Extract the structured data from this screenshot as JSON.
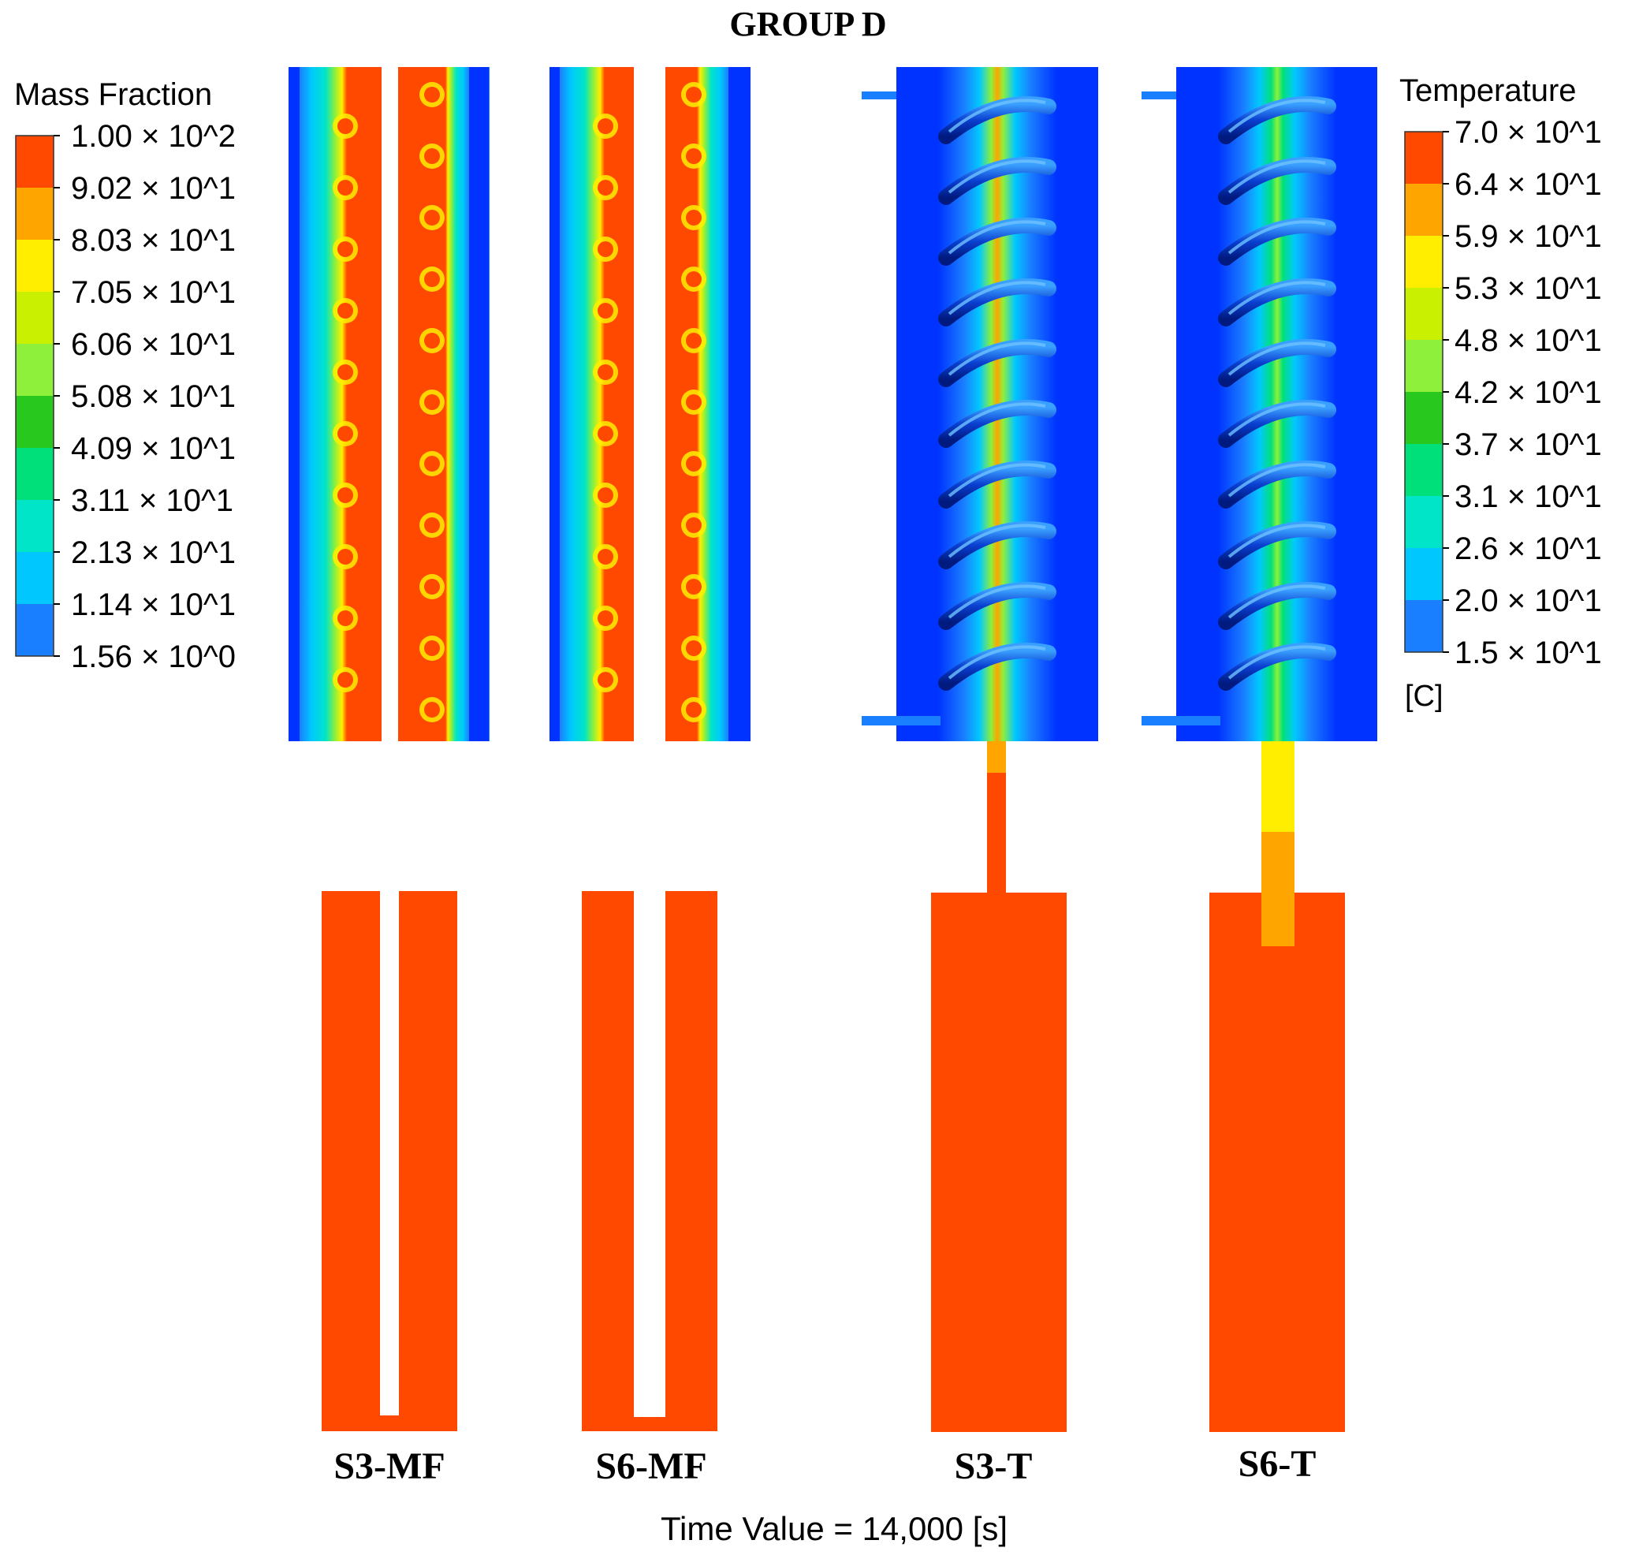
{
  "title": "GROUP D",
  "time_label": "Time Value = 14,000 [s]",
  "colors": {
    "c0": "#0033ff",
    "c1": "#1a7fff",
    "c2": "#00c8ff",
    "c3": "#00e5c8",
    "c4": "#00e07a",
    "c5": "#29c81e",
    "c6": "#8ef03a",
    "c7": "#c8f000",
    "c8": "#ffee00",
    "c9": "#ffa500",
    "c10": "#ff4800",
    "panel_bg": "#0033ff"
  },
  "legend_mf": {
    "title": "Mass Fraction",
    "ticks": [
      "1.00 × 10^2",
      "9.02 × 10^1",
      "8.03 × 10^1",
      "7.05 × 10^1",
      "6.06 × 10^1",
      "5.08 × 10^1",
      "4.09 × 10^1",
      "3.11 × 10^1",
      "2.13 × 10^1",
      "1.14 × 10^1",
      "1.56 × 10^0"
    ]
  },
  "legend_t": {
    "title": "Temperature",
    "unit": "[C]",
    "ticks": [
      "7.0 × 10^1",
      "6.4 × 10^1",
      "5.9 × 10^1",
      "5.3 × 10^1",
      "4.8 × 10^1",
      "4.2 × 10^1",
      "3.7 × 10^1",
      "3.1 × 10^1",
      "2.6 × 10^1",
      "2.0 × 10^1",
      "1.5 × 10^1"
    ]
  },
  "panels": [
    {
      "label": "S3-MF"
    },
    {
      "label": "S6-MF"
    },
    {
      "label": "S3-T"
    },
    {
      "label": "S6-T"
    }
  ]
}
